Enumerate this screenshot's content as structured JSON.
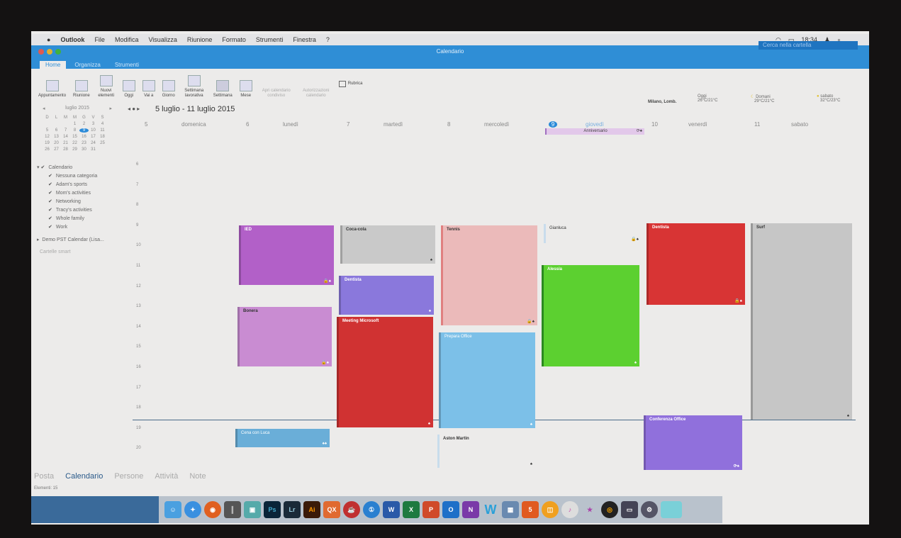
{
  "menubar": {
    "items": [
      "Outlook",
      "File",
      "Modifica",
      "Visualizza",
      "Riunione",
      "Formato",
      "Strumenti",
      "Finestra",
      "?"
    ],
    "clock": "18:34"
  },
  "window": {
    "title": "Calendario",
    "search_placeholder": "Cerca nella cartella"
  },
  "tabs": [
    "Home",
    "Organizza",
    "Strumenti"
  ],
  "ribbon": [
    {
      "label": "Appuntamento"
    },
    {
      "label": "Riunione"
    },
    {
      "label": "Nuovi elementi"
    },
    {
      "label": "Oggi"
    },
    {
      "label": "Vai a"
    },
    {
      "label": "Giorno"
    },
    {
      "label": "Settimana lavorativa"
    },
    {
      "label": "Settimana"
    },
    {
      "label": "Mese"
    },
    {
      "label": "Apri calendario condiviso"
    },
    {
      "label": "Autorizzazioni calendario"
    },
    {
      "label": "Rubrica"
    }
  ],
  "minical": {
    "month": "luglio 2015",
    "weekdays": [
      "D",
      "L",
      "M",
      "M",
      "G",
      "V",
      "S"
    ],
    "days": [
      "",
      "",
      "",
      "1",
      "2",
      "3",
      "4",
      "5",
      "6",
      "7",
      "8",
      "9",
      "10",
      "11",
      "12",
      "13",
      "14",
      "15",
      "16",
      "17",
      "18",
      "19",
      "20",
      "21",
      "22",
      "23",
      "24",
      "25",
      "26",
      "27",
      "28",
      "29",
      "30",
      "31"
    ],
    "today": "9"
  },
  "calendars": {
    "root": "Calendario",
    "items": [
      "Nessuna categoria",
      "Adam's sports",
      "Mom's activities",
      "Networking",
      "Tracy's activities",
      "Whole family",
      "Work"
    ],
    "other": "Demo PST Calendar (Lisa...",
    "smart": "Cartelle smart"
  },
  "header": {
    "range": "5 luglio - 11 luglio 2015",
    "location": "Milano, Lomb.",
    "weather": [
      {
        "day": "Oggi",
        "temp": "26°C/21°C"
      },
      {
        "day": "Domani",
        "temp": "29°C/21°C"
      },
      {
        "day": "sabato",
        "temp": "32°C/23°C"
      }
    ]
  },
  "days": [
    {
      "num": "5",
      "name": "domenica"
    },
    {
      "num": "6",
      "name": "lunedì"
    },
    {
      "num": "7",
      "name": "martedì"
    },
    {
      "num": "8",
      "name": "mercoledì"
    },
    {
      "num": "9",
      "name": "giovedì"
    },
    {
      "num": "10",
      "name": "venerdì"
    },
    {
      "num": "11",
      "name": "sabato"
    }
  ],
  "hours": [
    "6",
    "7",
    "8",
    "9",
    "10",
    "11",
    "12",
    "13",
    "14",
    "15",
    "16",
    "17",
    "18",
    "19",
    "20"
  ],
  "allday": "Anniversario",
  "events": [
    "IED",
    "Bonera",
    "Cena con Luca",
    "Coca-cola",
    "Dentista",
    "Meeting Microsoft",
    "Tennis",
    "Prepara Office",
    "Aston Martin",
    "Gianluca",
    "Alessia",
    "Dentista",
    "Conferenza Office",
    "Surf"
  ],
  "nav": [
    "Posta",
    "Calendario",
    "Persone",
    "Attività",
    "Note"
  ],
  "status": "Elementi: 15",
  "dock": [
    "Ps",
    "Lr",
    "Ai",
    "QX",
    "W",
    "X",
    "P",
    "O",
    "N",
    "W"
  ]
}
